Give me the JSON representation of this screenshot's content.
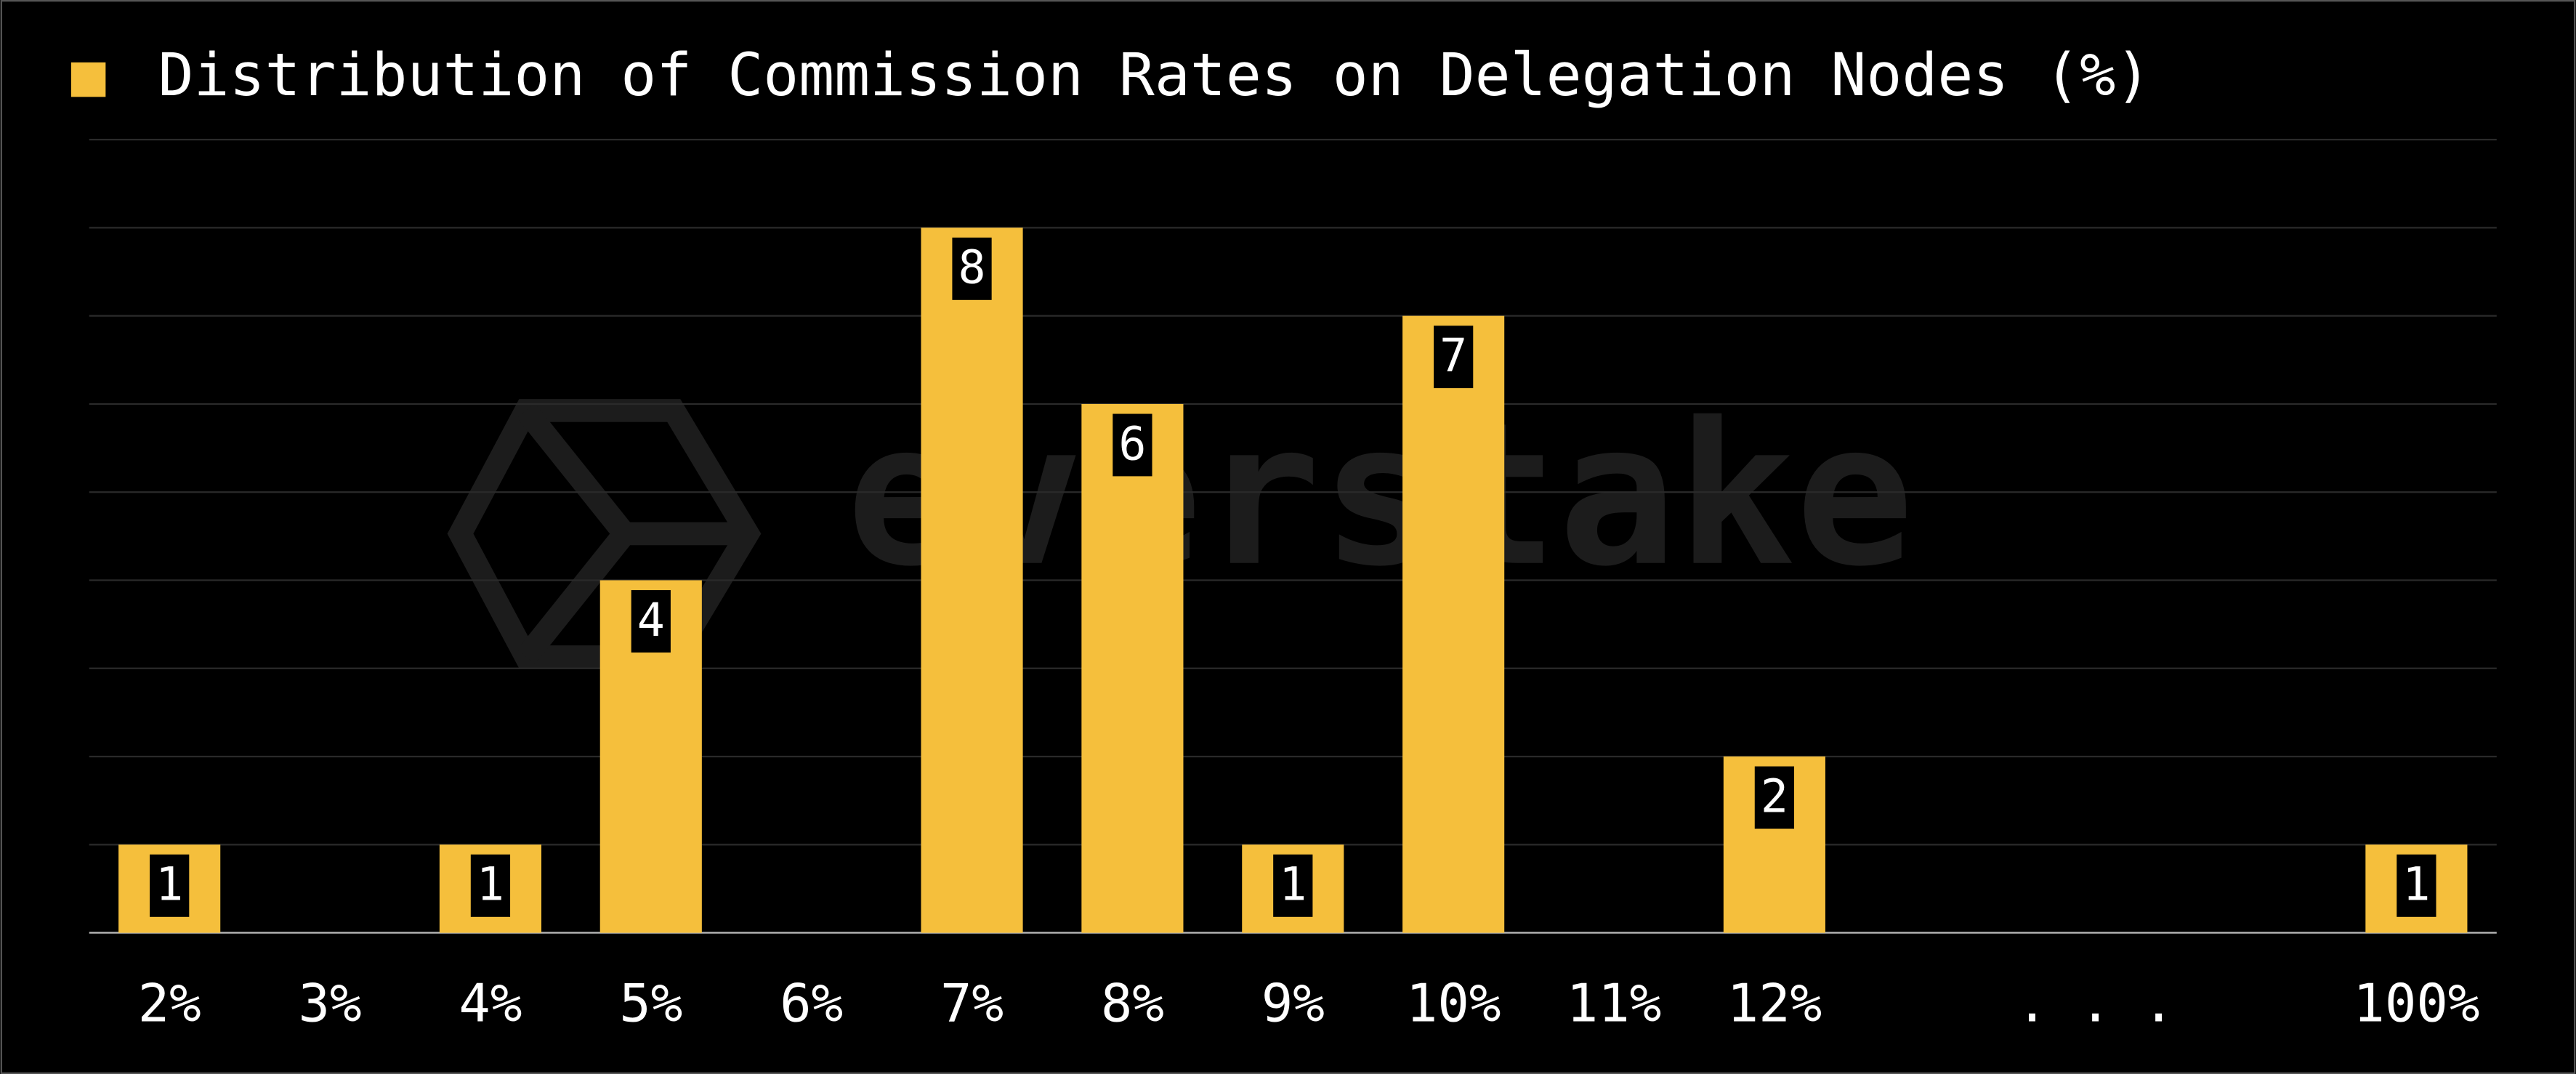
{
  "chart_data": {
    "type": "bar",
    "title": "Distribution of Commission Rates on Delegation Nodes (%)",
    "watermark": "everstake",
    "categories": [
      "2%",
      "3%",
      "4%",
      "5%",
      "6%",
      "7%",
      "8%",
      "9%",
      "10%",
      "11%",
      "12%",
      ". . .",
      "100%"
    ],
    "values": [
      1,
      0,
      1,
      4,
      0,
      8,
      6,
      1,
      7,
      0,
      2,
      null,
      1
    ],
    "color": "#f5bf3c",
    "ylim": [
      0,
      9
    ],
    "yticks": [
      0,
      1,
      2,
      3,
      4,
      5,
      6,
      7,
      8,
      9
    ],
    "grid": true
  }
}
